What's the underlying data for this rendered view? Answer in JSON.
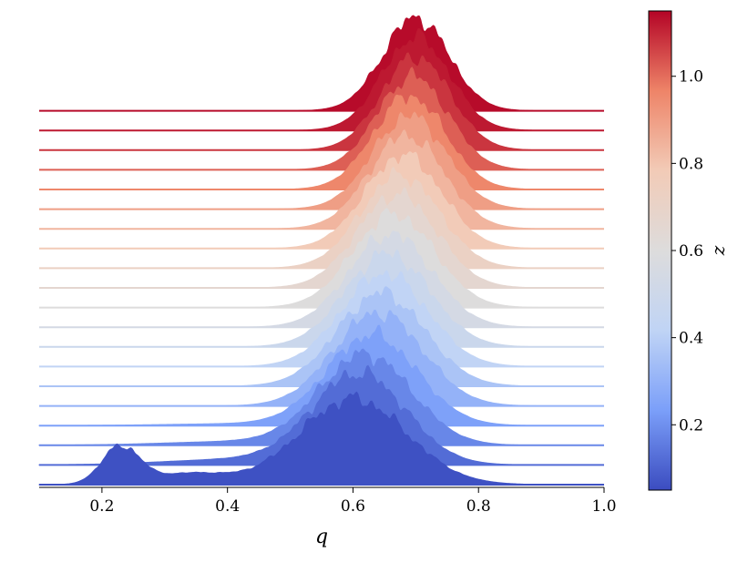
{
  "chart_data": {
    "type": "area",
    "title": "",
    "xlabel": "q",
    "ylabel": "",
    "xlim": [
      0.1,
      1.0
    ],
    "x_ticks": [
      "0.2",
      "0.4",
      "0.6",
      "0.8",
      "1.0"
    ],
    "grid": false,
    "legend": "none",
    "colorbar": {
      "label": "z",
      "range": [
        0.05,
        1.15
      ],
      "ticks": [
        "0.2",
        "0.4",
        "0.6",
        "0.8",
        "1.0"
      ],
      "colormap": "coolwarm",
      "stops": [
        "#3b4cc0",
        "#7b9ff9",
        "#c0d4f5",
        "#dddcdc",
        "#f2cbb7",
        "#ee8468",
        "#b40426"
      ]
    },
    "ridgelines": {
      "count": 20,
      "z_values": [
        0.06,
        0.12,
        0.18,
        0.24,
        0.3,
        0.36,
        0.42,
        0.48,
        0.54,
        0.6,
        0.66,
        0.72,
        0.78,
        0.84,
        0.9,
        0.96,
        1.02,
        1.08,
        1.12,
        1.14
      ],
      "peak_q": [
        0.6,
        0.61,
        0.62,
        0.63,
        0.64,
        0.645,
        0.65,
        0.655,
        0.66,
        0.665,
        0.67,
        0.675,
        0.68,
        0.685,
        0.69,
        0.69,
        0.695,
        0.7,
        0.7,
        0.7
      ],
      "secondary_peak_q": 0.23
    }
  }
}
